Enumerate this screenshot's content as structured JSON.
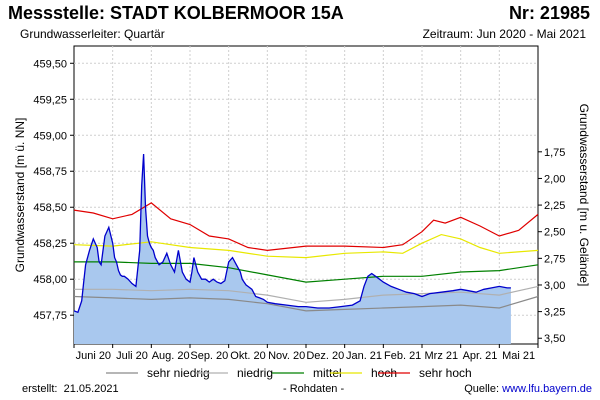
{
  "header": {
    "title": "Messstelle: STADT KOLBERMOOR 15A",
    "number": "Nr: 21985",
    "aquifer": "Grundwasserleiter: Quartär",
    "period": "Zeitraum: Jun 2020 - Mai 2021"
  },
  "footer": {
    "created_label": "erstellt:",
    "created_date": "21.05.2021",
    "raw": "- Rohdaten -",
    "source_label": "Quelle:",
    "source_url": "www.lfu.bayern.de"
  },
  "chart_data": {
    "type": "area",
    "ylabel": "Grundwasserstand [m ü. NN]",
    "y2label": "Grundwasserstand [m u. Gelände]",
    "ylim": [
      457.55,
      459.62
    ],
    "yticks": [
      457.75,
      458.0,
      458.25,
      458.5,
      458.75,
      459.0,
      459.25,
      459.5
    ],
    "ytick_labels": [
      "457,75",
      "458,00",
      "458,25",
      "458,50",
      "458,75",
      "459,00",
      "459,25",
      "459,50"
    ],
    "y2ticks": [
      1.75,
      2.0,
      2.25,
      2.5,
      2.75,
      3.0,
      3.25,
      3.5
    ],
    "y2tick_labels": [
      "1,75",
      "2,00",
      "2,25",
      "2,50",
      "2,75",
      "3,00",
      "3,25",
      "3,50"
    ],
    "xlim": [
      0,
      12
    ],
    "xtick_labels": [
      "Juni 20",
      "Juli 20",
      "Aug. 20",
      "Sep. 20",
      "Okt. 20",
      "Nov. 20",
      "Dez. 20",
      "Jan. 21",
      "Feb. 21",
      "Mrz 21",
      "Apr. 21",
      "Mai 21"
    ],
    "grid": true,
    "legend_position": "bottom",
    "colors": {
      "area_fill": "#a9c8ee",
      "measured_line": "#0000cc",
      "sehr_niedrig": "#8a8a8a",
      "niedrig": "#b0b0b0",
      "mittel": "#008000",
      "hoch": "#e8e800",
      "sehr_hoch": "#e00000"
    },
    "measured": {
      "x": [
        0,
        0.1,
        0.2,
        0.25,
        0.3,
        0.4,
        0.5,
        0.6,
        0.65,
        0.7,
        0.8,
        0.9,
        1.0,
        1.05,
        1.1,
        1.15,
        1.2,
        1.25,
        1.3,
        1.4,
        1.5,
        1.6,
        1.7,
        1.75,
        1.8,
        1.85,
        1.9,
        1.95,
        2.0,
        2.05,
        2.1,
        2.2,
        2.3,
        2.4,
        2.5,
        2.6,
        2.7,
        2.8,
        2.9,
        3.0,
        3.05,
        3.1,
        3.15,
        3.2,
        3.3,
        3.4,
        3.5,
        3.6,
        3.7,
        3.8,
        3.9,
        4.0,
        4.1,
        4.2,
        4.3,
        4.35,
        4.4,
        4.45,
        4.5,
        4.6,
        4.7,
        4.8,
        4.9,
        5.0,
        5.2,
        5.5,
        5.8,
        6.0,
        6.3,
        6.6,
        6.9,
        7.2,
        7.4,
        7.5,
        7.6,
        7.7,
        7.8,
        7.9,
        8.0,
        8.2,
        8.4,
        8.6,
        8.8,
        9.0,
        9.2,
        9.5,
        9.8,
        10.0,
        10.2,
        10.4,
        10.5,
        10.6,
        10.8,
        11.0,
        11.2,
        11.3
      ],
      "y": [
        457.78,
        457.77,
        457.85,
        457.98,
        458.1,
        458.2,
        458.28,
        458.22,
        458.12,
        458.1,
        458.3,
        458.36,
        458.25,
        458.15,
        458.12,
        458.06,
        458.03,
        458.02,
        458.02,
        458.0,
        457.97,
        457.95,
        458.2,
        458.65,
        458.87,
        458.5,
        458.3,
        458.25,
        458.22,
        458.2,
        458.15,
        458.1,
        458.12,
        458.18,
        458.1,
        458.05,
        458.2,
        458.05,
        458.0,
        457.98,
        458.05,
        458.15,
        458.1,
        458.05,
        458.0,
        458.0,
        457.98,
        458.0,
        457.98,
        457.97,
        457.99,
        458.12,
        458.15,
        458.1,
        458.05,
        458.0,
        457.98,
        457.96,
        457.95,
        457.93,
        457.88,
        457.87,
        457.86,
        457.84,
        457.83,
        457.82,
        457.81,
        457.81,
        457.8,
        457.8,
        457.81,
        457.82,
        457.85,
        457.95,
        458.02,
        458.04,
        458.02,
        458.0,
        457.98,
        457.95,
        457.93,
        457.91,
        457.9,
        457.88,
        457.9,
        457.91,
        457.92,
        457.93,
        457.92,
        457.91,
        457.92,
        457.93,
        457.94,
        457.95,
        457.94,
        457.94
      ]
    },
    "series": [
      {
        "name": "sehr niedrig",
        "x": [
          0,
          1,
          2,
          3,
          4,
          5,
          6,
          7,
          8,
          9,
          10,
          11,
          12
        ],
        "values": [
          457.88,
          457.87,
          457.86,
          457.87,
          457.86,
          457.83,
          457.78,
          457.79,
          457.8,
          457.81,
          457.82,
          457.8,
          457.88
        ]
      },
      {
        "name": "niedrig",
        "x": [
          0,
          1,
          2,
          3,
          4,
          5,
          6,
          7,
          8,
          9,
          10,
          11,
          12
        ],
        "values": [
          457.93,
          457.93,
          457.92,
          457.93,
          457.92,
          457.89,
          457.84,
          457.86,
          457.89,
          457.9,
          457.91,
          457.89,
          457.95
        ]
      },
      {
        "name": "mittel",
        "x": [
          0,
          1,
          2,
          3,
          4,
          5,
          6,
          7,
          8,
          9,
          10,
          11,
          12
        ],
        "values": [
          458.12,
          458.12,
          458.11,
          458.11,
          458.08,
          458.03,
          457.98,
          458.0,
          458.02,
          458.02,
          458.05,
          458.06,
          458.1
        ]
      },
      {
        "name": "hoch",
        "x": [
          0,
          1,
          2,
          3,
          4,
          5,
          6,
          7,
          8,
          8.5,
          9,
          9.5,
          10,
          10.5,
          11,
          12
        ],
        "values": [
          458.24,
          458.23,
          458.26,
          458.22,
          458.2,
          458.16,
          458.15,
          458.18,
          458.19,
          458.18,
          458.25,
          458.31,
          458.28,
          458.22,
          458.18,
          458.2
        ]
      },
      {
        "name": "sehr hoch",
        "x": [
          0,
          0.5,
          1,
          1.5,
          2,
          2.5,
          3,
          3.5,
          4,
          4.5,
          5,
          6,
          7,
          8,
          8.5,
          9,
          9.3,
          9.6,
          10,
          10.5,
          11,
          11.5,
          12
        ],
        "values": [
          458.48,
          458.46,
          458.42,
          458.45,
          458.53,
          458.42,
          458.38,
          458.3,
          458.28,
          458.22,
          458.2,
          458.23,
          458.23,
          458.22,
          458.24,
          458.33,
          458.41,
          458.39,
          458.43,
          458.37,
          458.3,
          458.34,
          458.45
        ]
      }
    ]
  }
}
